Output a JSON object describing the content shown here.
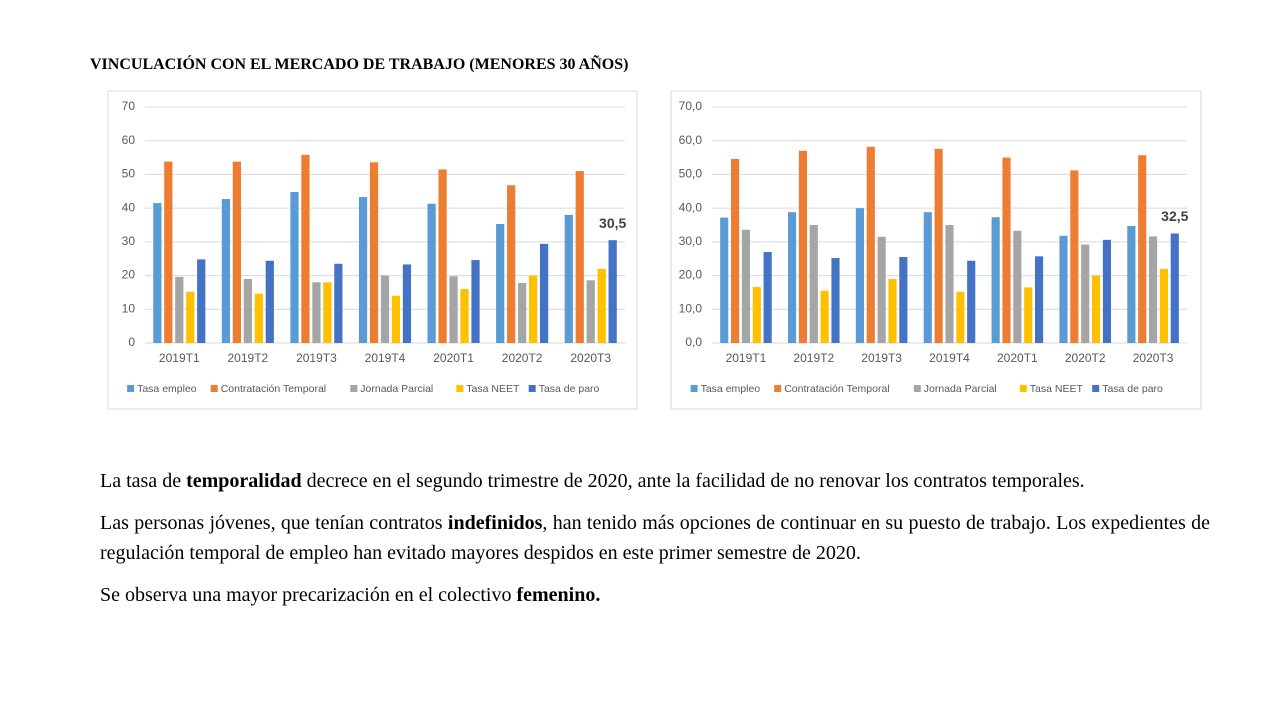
{
  "title": "VINCULACIÓN CON EL MERCADO DE TRABAJO (MENORES 30 AÑOS)",
  "chart_data": [
    {
      "type": "bar",
      "categories": [
        "2019T1",
        "2019T2",
        "2019T3",
        "2019T4",
        "2020T1",
        "2020T2",
        "2020T3"
      ],
      "ylim": [
        0,
        70
      ],
      "yticks": [
        0,
        10,
        20,
        30,
        40,
        50,
        60,
        70
      ],
      "grid": true,
      "legend": "bottom",
      "series": [
        {
          "name": "Tasa empleo",
          "color": "#5b9bd5",
          "values": [
            41.5,
            42.7,
            44.8,
            43.3,
            41.3,
            35.3,
            38
          ]
        },
        {
          "name": "Contratación Temporal",
          "color": "#ed7d31",
          "values": [
            53.8,
            53.8,
            55.8,
            53.6,
            51.5,
            46.8,
            51
          ]
        },
        {
          "name": "Jornada Parcial",
          "color": "#a5a5a5",
          "values": [
            19.6,
            19,
            18,
            20,
            19.8,
            17.8,
            18.6
          ]
        },
        {
          "name": "Tasa NEET",
          "color": "#ffc000",
          "values": [
            15.2,
            14.6,
            18,
            14,
            16,
            20,
            22
          ]
        },
        {
          "name": "Tasa de paro",
          "color": "#4472c4",
          "values": [
            24.8,
            24.4,
            23.5,
            23.3,
            24.6,
            29.4,
            30.5
          ],
          "value_labels": [
            null,
            null,
            null,
            null,
            null,
            null,
            "30,5"
          ]
        }
      ]
    },
    {
      "type": "bar",
      "categories": [
        "2019T1",
        "2019T2",
        "2019T3",
        "2019T4",
        "2020T1",
        "2020T2",
        "2020T3"
      ],
      "ylim": [
        0,
        70
      ],
      "yticks": [
        {
          "value": 0,
          "label": "0,0"
        },
        {
          "value": 10,
          "label": "10,0"
        },
        {
          "value": 20,
          "label": "20,0"
        },
        {
          "value": 30,
          "label": "30,0"
        },
        {
          "value": 40,
          "label": "40,0"
        },
        {
          "value": 50,
          "label": "50,0"
        },
        {
          "value": 60,
          "label": "60,0"
        },
        {
          "value": 70,
          "label": "70,0"
        }
      ],
      "grid": true,
      "legend": "bottom",
      "series": [
        {
          "name": "Tasa empleo",
          "color": "#5b9bd5",
          "values": [
            37.2,
            38.8,
            40,
            38.8,
            37.3,
            31.8,
            34.7
          ]
        },
        {
          "name": "Contratación Temporal",
          "color": "#ed7d31",
          "values": [
            54.6,
            57,
            58.2,
            57.6,
            55,
            51.2,
            55.7
          ]
        },
        {
          "name": "Jornada Parcial",
          "color": "#a5a5a5",
          "values": [
            33.6,
            35,
            31.5,
            35,
            33.3,
            29.2,
            31.6
          ]
        },
        {
          "name": "Tasa NEET",
          "color": "#ffc000",
          "values": [
            16.6,
            15.5,
            19,
            15.2,
            16.5,
            20,
            22
          ]
        },
        {
          "name": "Tasa de paro",
          "color": "#4472c4",
          "values": [
            27,
            25.2,
            25.5,
            24.4,
            25.7,
            30.6,
            32.5
          ],
          "value_labels": [
            null,
            null,
            null,
            null,
            null,
            null,
            "32,5"
          ]
        }
      ]
    }
  ],
  "paragraphs": [
    [
      {
        "text": "La tasa de ",
        "bold": false
      },
      {
        "text": "temporalidad",
        "bold": true
      },
      {
        "text": " decrece en el segundo trimestre de 2020, ante la facilidad de no renovar los contratos temporales.",
        "bold": false
      }
    ],
    [
      {
        "text": "Las personas jóvenes, que tenían contratos ",
        "bold": false
      },
      {
        "text": "indefinidos",
        "bold": true
      },
      {
        "text": ", han tenido más opciones de continuar en su puesto de trabajo. Los expedientes de regulación temporal de empleo han evitado mayores despidos en este primer semestre de 2020.",
        "bold": false
      }
    ],
    [
      {
        "text": "Se observa una mayor precarización en el colectivo ",
        "bold": false
      },
      {
        "text": "femenino.",
        "bold": true
      }
    ]
  ]
}
